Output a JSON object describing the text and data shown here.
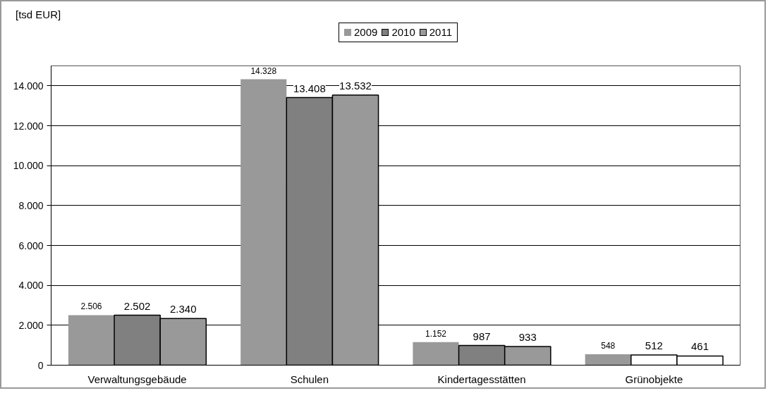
{
  "chart_data": {
    "type": "bar",
    "ylabel": "[tsd EUR]",
    "categories": [
      "Verwaltungsgebäude",
      "Schulen",
      "Kindertagesstätten",
      "Grünobjekte"
    ],
    "series": [
      {
        "name": "2009",
        "color": "#999999",
        "values": [
          2506,
          14328,
          1152,
          548
        ],
        "value_labels": [
          "2.506",
          "14.328",
          "1.152",
          "548"
        ]
      },
      {
        "name": "2010",
        "color": "#808080",
        "colors": [
          "#808080",
          "#808080",
          "#808080",
          "#ffffff"
        ],
        "values": [
          2502,
          13408,
          987,
          512
        ],
        "value_labels": [
          "2.502",
          "13.408",
          "987",
          "512"
        ]
      },
      {
        "name": "2011",
        "color": "#999999",
        "colors": [
          "#999999",
          "#999999",
          "#999999",
          "#ffffff"
        ],
        "values": [
          2340,
          13532,
          933,
          461
        ],
        "value_labels": [
          "2.340",
          "13.532",
          "933",
          "461"
        ]
      }
    ],
    "ylim": [
      0,
      15000
    ],
    "yticks": [
      0,
      {
        "value": 2000,
        "label": "2.000"
      },
      {
        "value": 4000,
        "label": "4.000"
      },
      {
        "value": 6000,
        "label": "6.000"
      },
      {
        "value": 8000,
        "label": "8.000"
      },
      {
        "value": 10000,
        "label": "10.000"
      },
      {
        "value": 12000,
        "label": "12.000"
      },
      {
        "value": 14000,
        "label": "14.000"
      }
    ],
    "grid": "y",
    "legend": "top"
  }
}
